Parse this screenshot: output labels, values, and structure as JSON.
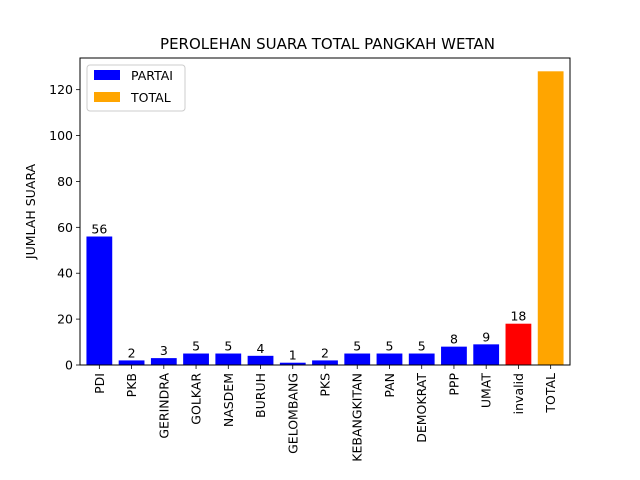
{
  "chart_data": {
    "type": "bar",
    "title": "PEROLEHAN SUARA TOTAL PANGKAH WETAN",
    "xlabel": "",
    "ylabel": "JUMLAH SUARA",
    "ylim": [
      0,
      133.8
    ],
    "yticks": [
      "0",
      "20",
      "40",
      "60",
      "80",
      "100",
      "120"
    ],
    "grid": false,
    "legend_position": "top-left",
    "legend": [
      {
        "name": "PARTAI",
        "color": "#0000ff"
      },
      {
        "name": "TOTAL",
        "color": "#ffa500"
      }
    ],
    "categories": [
      "PDI",
      "PKB",
      "GERINDRA",
      "GOLKAR",
      "NASDEM",
      "BURUH",
      "GELOMBANG",
      "PKS",
      "KEBANGKITAN",
      "PAN",
      "DEMOKRAT",
      "PPP",
      "UMAT",
      "invalid",
      "TOTAL"
    ],
    "values": [
      56,
      2,
      3,
      5,
      5,
      4,
      1,
      2,
      5,
      5,
      5,
      8,
      9,
      18,
      128
    ],
    "data_labels": [
      "56",
      "2",
      "3",
      "5",
      "5",
      "4",
      "1",
      "2",
      "5",
      "5",
      "5",
      "8",
      "9",
      "18",
      ""
    ],
    "colors": [
      "#0000ff",
      "#0000ff",
      "#0000ff",
      "#0000ff",
      "#0000ff",
      "#0000ff",
      "#0000ff",
      "#0000ff",
      "#0000ff",
      "#0000ff",
      "#0000ff",
      "#0000ff",
      "#0000ff",
      "#ff0000",
      "#ffa500"
    ]
  }
}
